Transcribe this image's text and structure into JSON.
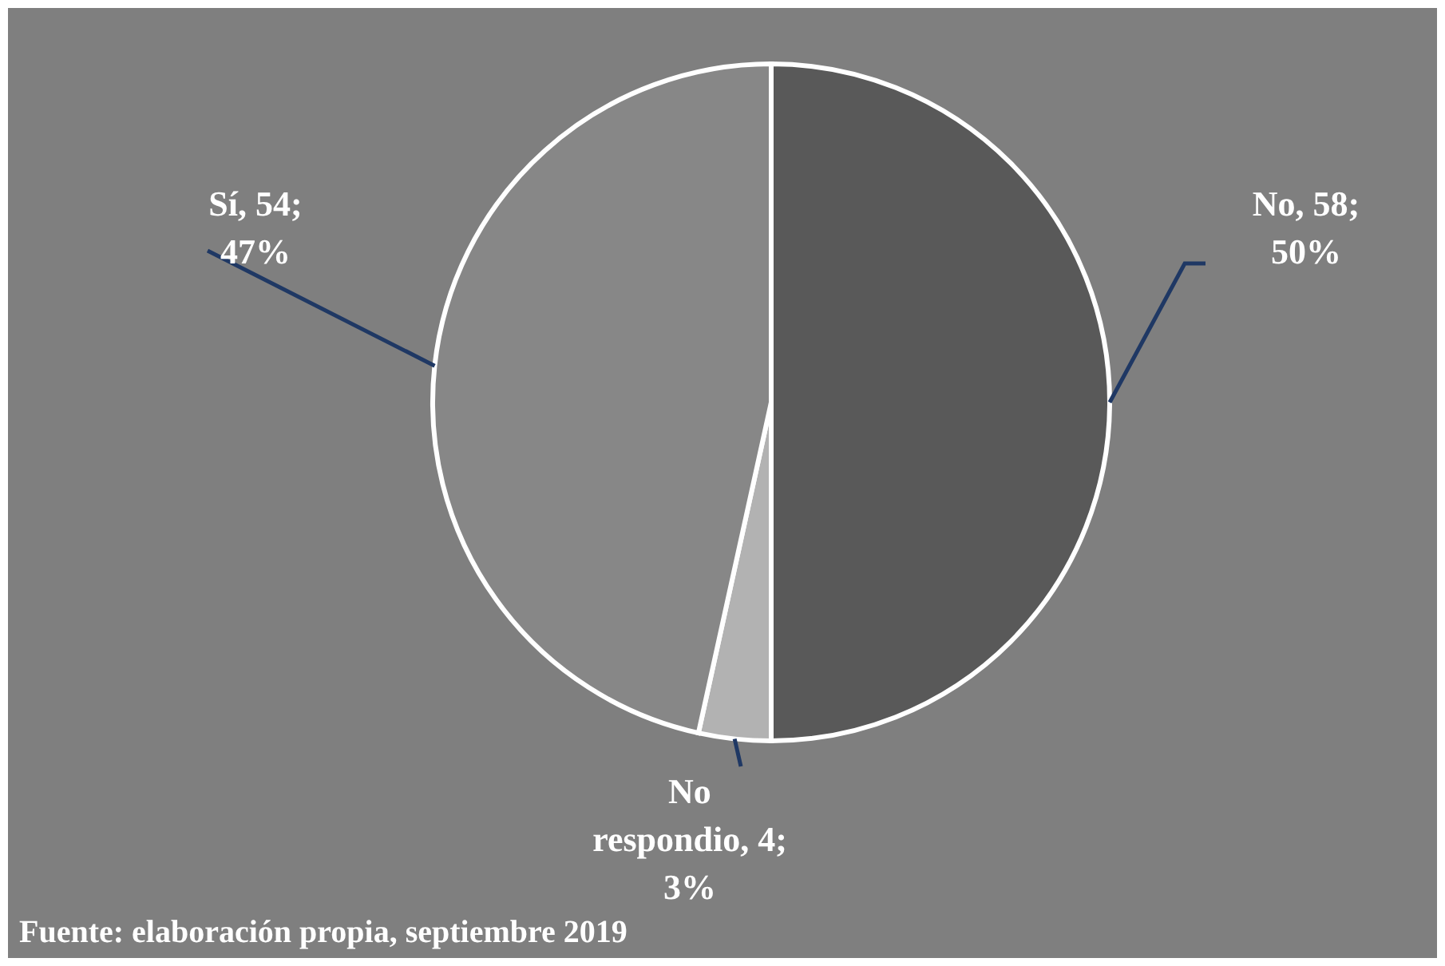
{
  "chart_data": {
    "type": "pie",
    "categories": [
      "No",
      "No respondio",
      "Sí"
    ],
    "values": [
      58,
      4,
      54
    ],
    "colors": [
      "#595959",
      "#b2b2b2",
      "#878787"
    ],
    "value_labels": [
      ", 58; 50%",
      ", 4; 3%",
      ", 54; 47%"
    ],
    "annotations": [
      "Fuente: elaboración propia, septiembre 2019"
    ]
  }
}
